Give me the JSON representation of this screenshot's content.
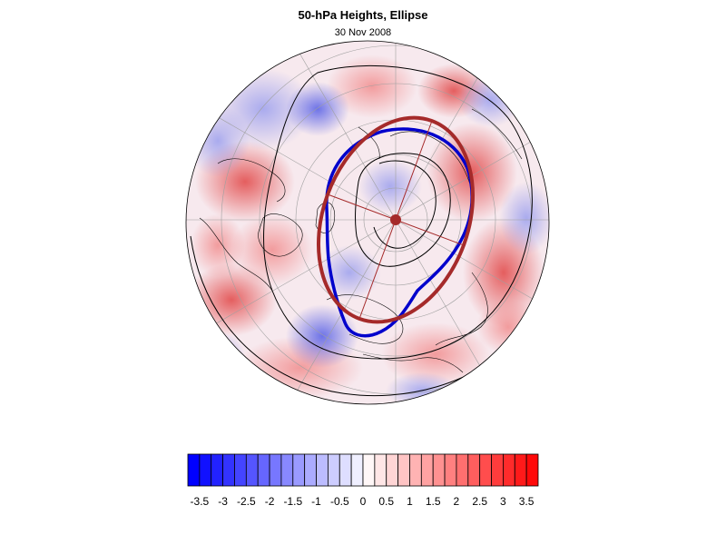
{
  "header": {
    "title": "50-hPa Heights, Ellipse",
    "date": "30 Nov 2008"
  },
  "colors": {
    "negative_extreme": "#0000ff",
    "neutral": "#ffffff",
    "positive_extreme": "#ff0000",
    "vortex_contour": "#0000cc",
    "fitted_ellipse": "#a52a2a"
  },
  "colorbar": {
    "levels": [
      -3.75,
      -3.5,
      -3.25,
      -3,
      -2.75,
      -2.5,
      -2.25,
      -2,
      -1.75,
      -1.5,
      -1.25,
      -1,
      -0.75,
      -0.5,
      -0.25,
      0,
      0.25,
      0.5,
      0.75,
      1,
      1.25,
      1.5,
      1.75,
      2,
      2.25,
      2.5,
      2.75,
      3,
      3.25,
      3.5,
      3.75
    ],
    "labels": [
      "-3.5",
      "-3",
      "-2.5",
      "-2",
      "-1.5",
      "-1",
      "-0.5",
      "0",
      "0.5",
      "1",
      "1.5",
      "2",
      "2.5",
      "3",
      "3.5"
    ],
    "label_values": [
      -3.5,
      -3,
      -2.5,
      -2,
      -1.5,
      -1,
      -0.5,
      0,
      0.5,
      1,
      1.5,
      2,
      2.5,
      3,
      3.5
    ]
  }
}
